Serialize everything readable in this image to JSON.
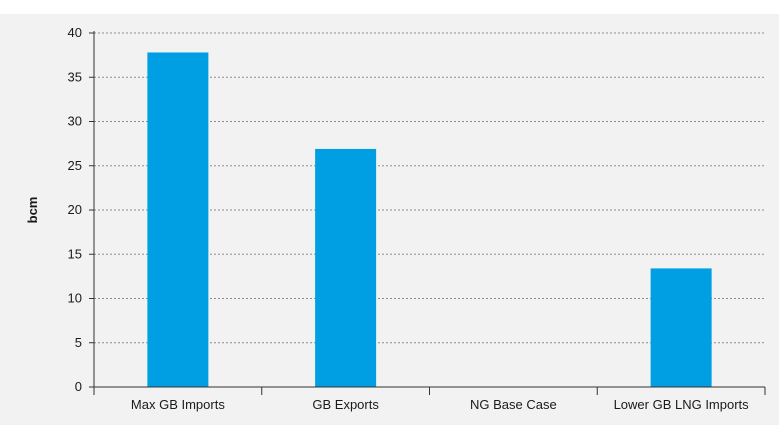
{
  "chart_data": {
    "type": "bar",
    "title": "",
    "xlabel": "",
    "ylabel": "bcm",
    "categories": [
      "Max GB Imports",
      "GB Exports",
      "NG Base Case",
      "Lower GB LNG Imports"
    ],
    "values": [
      37.8,
      26.9,
      0,
      13.4
    ],
    "ylim": [
      0,
      40
    ],
    "yticks": [
      0,
      5,
      10,
      15,
      20,
      25,
      30,
      35,
      40
    ],
    "grid": true,
    "legend": "none",
    "bar_color": "#009fe3"
  }
}
